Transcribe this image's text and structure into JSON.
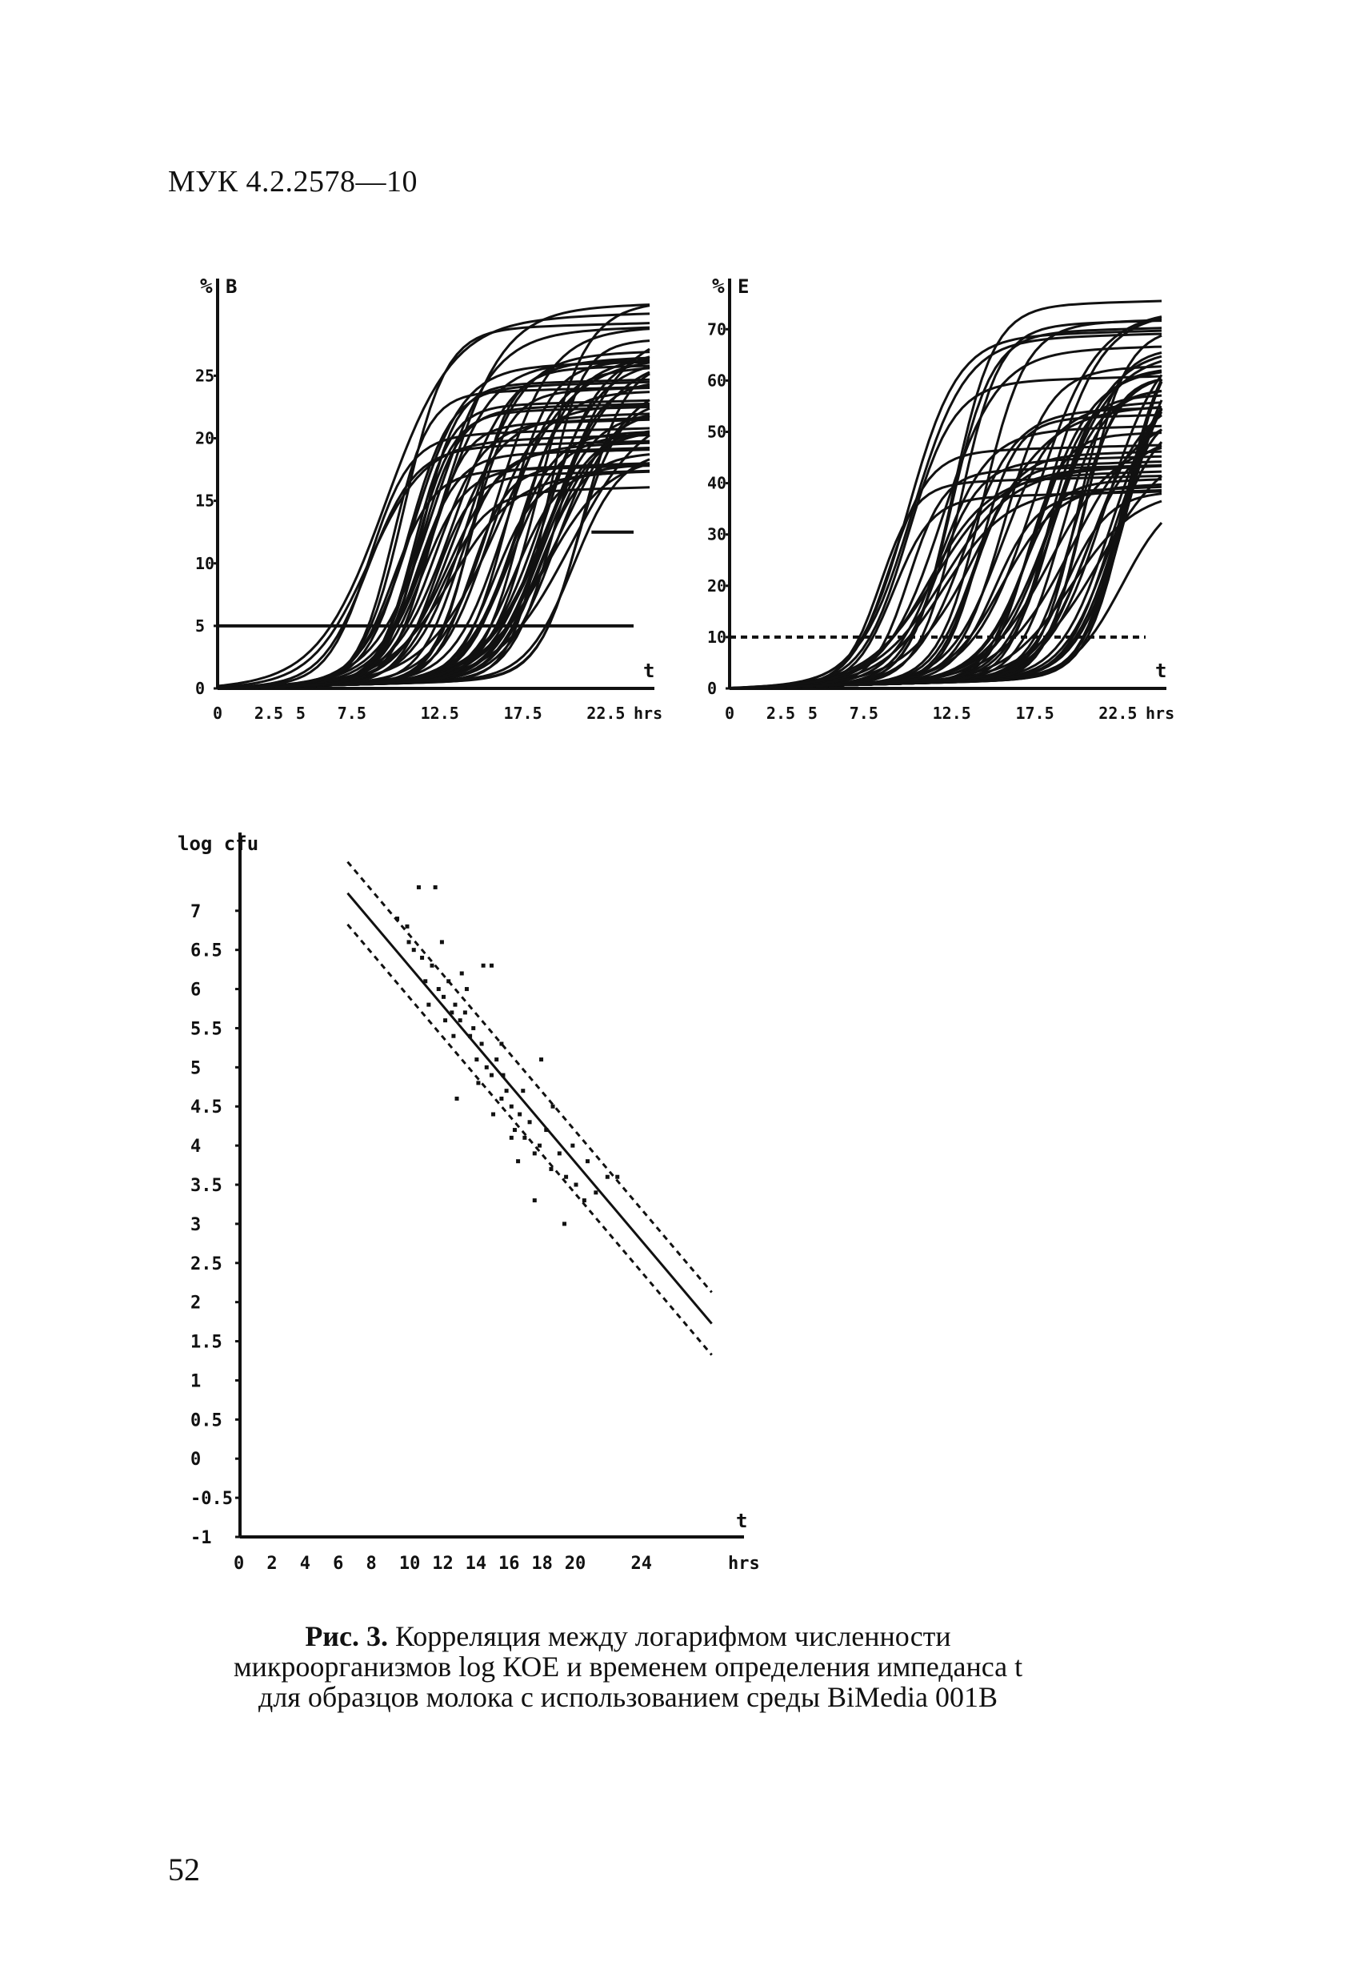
{
  "header": {
    "doc_code": "МУК 4.2.2578—10"
  },
  "caption": {
    "prefix": "Рис. 3.",
    "line1": "Корреляция между логарифмом численности",
    "line2": "микроорганизмов log КОЕ и временем определения импеданса t",
    "line3": "для образцов молока с использованием среды BiMedia 001B"
  },
  "page_number": "52",
  "chart_data": [
    {
      "type": "line",
      "panel": "B",
      "ylabel": "%",
      "panel_label": "B",
      "xlabel": "hrs",
      "x_axis_symbol": "t",
      "x_ticks": [
        "0",
        "2.5",
        "5",
        "7.5",
        "12.5",
        "17.5",
        "22.5"
      ],
      "y_ticks": [
        "0",
        "5",
        "10",
        "15",
        "20",
        "25"
      ],
      "xlim": [
        0,
        26
      ],
      "ylim": [
        0,
        32
      ],
      "threshold_lines": [
        {
          "y": 5,
          "style": "solid"
        },
        {
          "y": 12.5,
          "x_start": 22.5,
          "style": "solid"
        }
      ],
      "series_description_count": 60,
      "series_envelope": {
        "earliest_rise_hr": 5,
        "latest_rise_hr": 18,
        "plateau_min": 15,
        "plateau_max": 30
      }
    },
    {
      "type": "line",
      "panel": "E",
      "ylabel": "%",
      "panel_label": "E",
      "xlabel": "hrs",
      "x_axis_symbol": "t",
      "x_ticks": [
        "0",
        "2.5",
        "5",
        "7.5",
        "12.5",
        "17.5",
        "22.5"
      ],
      "y_ticks": [
        "0",
        "10",
        "20",
        "30",
        "40",
        "50",
        "60",
        "70"
      ],
      "xlim": [
        0,
        26
      ],
      "ylim": [
        0,
        78
      ],
      "threshold_lines": [
        {
          "y": 10,
          "style": "dashed"
        }
      ],
      "series_description_count": 60,
      "series_envelope": {
        "earliest_rise_hr": 5,
        "latest_rise_hr": 20,
        "plateau_min": 35,
        "plateau_max": 75
      }
    },
    {
      "type": "scatter",
      "panel": "regression",
      "ylabel": "log cfu",
      "xlabel": "hrs",
      "x_axis_symbol": "t",
      "x_ticks": [
        "0",
        "2",
        "4",
        "6",
        "8",
        "10",
        "12",
        "14",
        "16",
        "18",
        "20",
        "24"
      ],
      "y_ticks": [
        "-1",
        "-0.5",
        "0",
        "0.5",
        "1",
        "1.5",
        "2",
        "2.5",
        "3",
        "3.5",
        "4",
        "4.5",
        "5",
        "5.5",
        "6",
        "6.5",
        "7"
      ],
      "xlim": [
        0,
        29
      ],
      "ylim": [
        -1,
        8
      ],
      "regression": {
        "slope": -0.25,
        "intercept": 8.85
      },
      "confidence_band_offset": 0.4,
      "points": [
        [
          9.5,
          6.9
        ],
        [
          10.2,
          6.6
        ],
        [
          10.5,
          6.5
        ],
        [
          11.0,
          6.4
        ],
        [
          11.2,
          6.1
        ],
        [
          11.6,
          6.3
        ],
        [
          12.0,
          6.0
        ],
        [
          12.3,
          5.9
        ],
        [
          12.6,
          6.1
        ],
        [
          12.8,
          5.7
        ],
        [
          13.0,
          5.8
        ],
        [
          13.3,
          5.6
        ],
        [
          13.6,
          5.7
        ],
        [
          13.9,
          5.4
        ],
        [
          14.1,
          5.5
        ],
        [
          14.3,
          5.1
        ],
        [
          14.6,
          5.3
        ],
        [
          14.9,
          5.0
        ],
        [
          15.2,
          4.9
        ],
        [
          15.5,
          5.1
        ],
        [
          15.8,
          4.6
        ],
        [
          16.1,
          4.7
        ],
        [
          16.4,
          4.5
        ],
        [
          16.6,
          4.2
        ],
        [
          16.9,
          4.4
        ],
        [
          17.2,
          4.1
        ],
        [
          17.5,
          4.3
        ],
        [
          17.8,
          3.9
        ],
        [
          18.1,
          4.0
        ],
        [
          18.5,
          4.2
        ],
        [
          18.8,
          3.7
        ],
        [
          19.3,
          3.9
        ],
        [
          19.7,
          3.6
        ],
        [
          20.3,
          3.5
        ],
        [
          20.8,
          3.3
        ],
        [
          21.5,
          3.4
        ],
        [
          22.2,
          3.6
        ],
        [
          10.8,
          7.3
        ],
        [
          11.8,
          7.3
        ],
        [
          14.7,
          6.3
        ],
        [
          15.2,
          6.3
        ],
        [
          13.1,
          4.6
        ],
        [
          17.8,
          3.3
        ],
        [
          19.6,
          3.0
        ],
        [
          18.2,
          5.1
        ],
        [
          12.2,
          6.6
        ],
        [
          13.7,
          6.0
        ],
        [
          15.8,
          5.3
        ],
        [
          16.4,
          4.1
        ],
        [
          17.1,
          4.7
        ],
        [
          11.4,
          5.8
        ],
        [
          12.9,
          5.4
        ],
        [
          14.4,
          4.8
        ],
        [
          15.3,
          4.4
        ],
        [
          16.8,
          3.8
        ],
        [
          18.9,
          4.5
        ],
        [
          20.1,
          4.0
        ],
        [
          21.0,
          3.8
        ],
        [
          22.8,
          3.6
        ],
        [
          10.1,
          6.8
        ],
        [
          12.4,
          5.6
        ],
        [
          13.4,
          6.2
        ],
        [
          15.9,
          4.9
        ]
      ]
    }
  ]
}
